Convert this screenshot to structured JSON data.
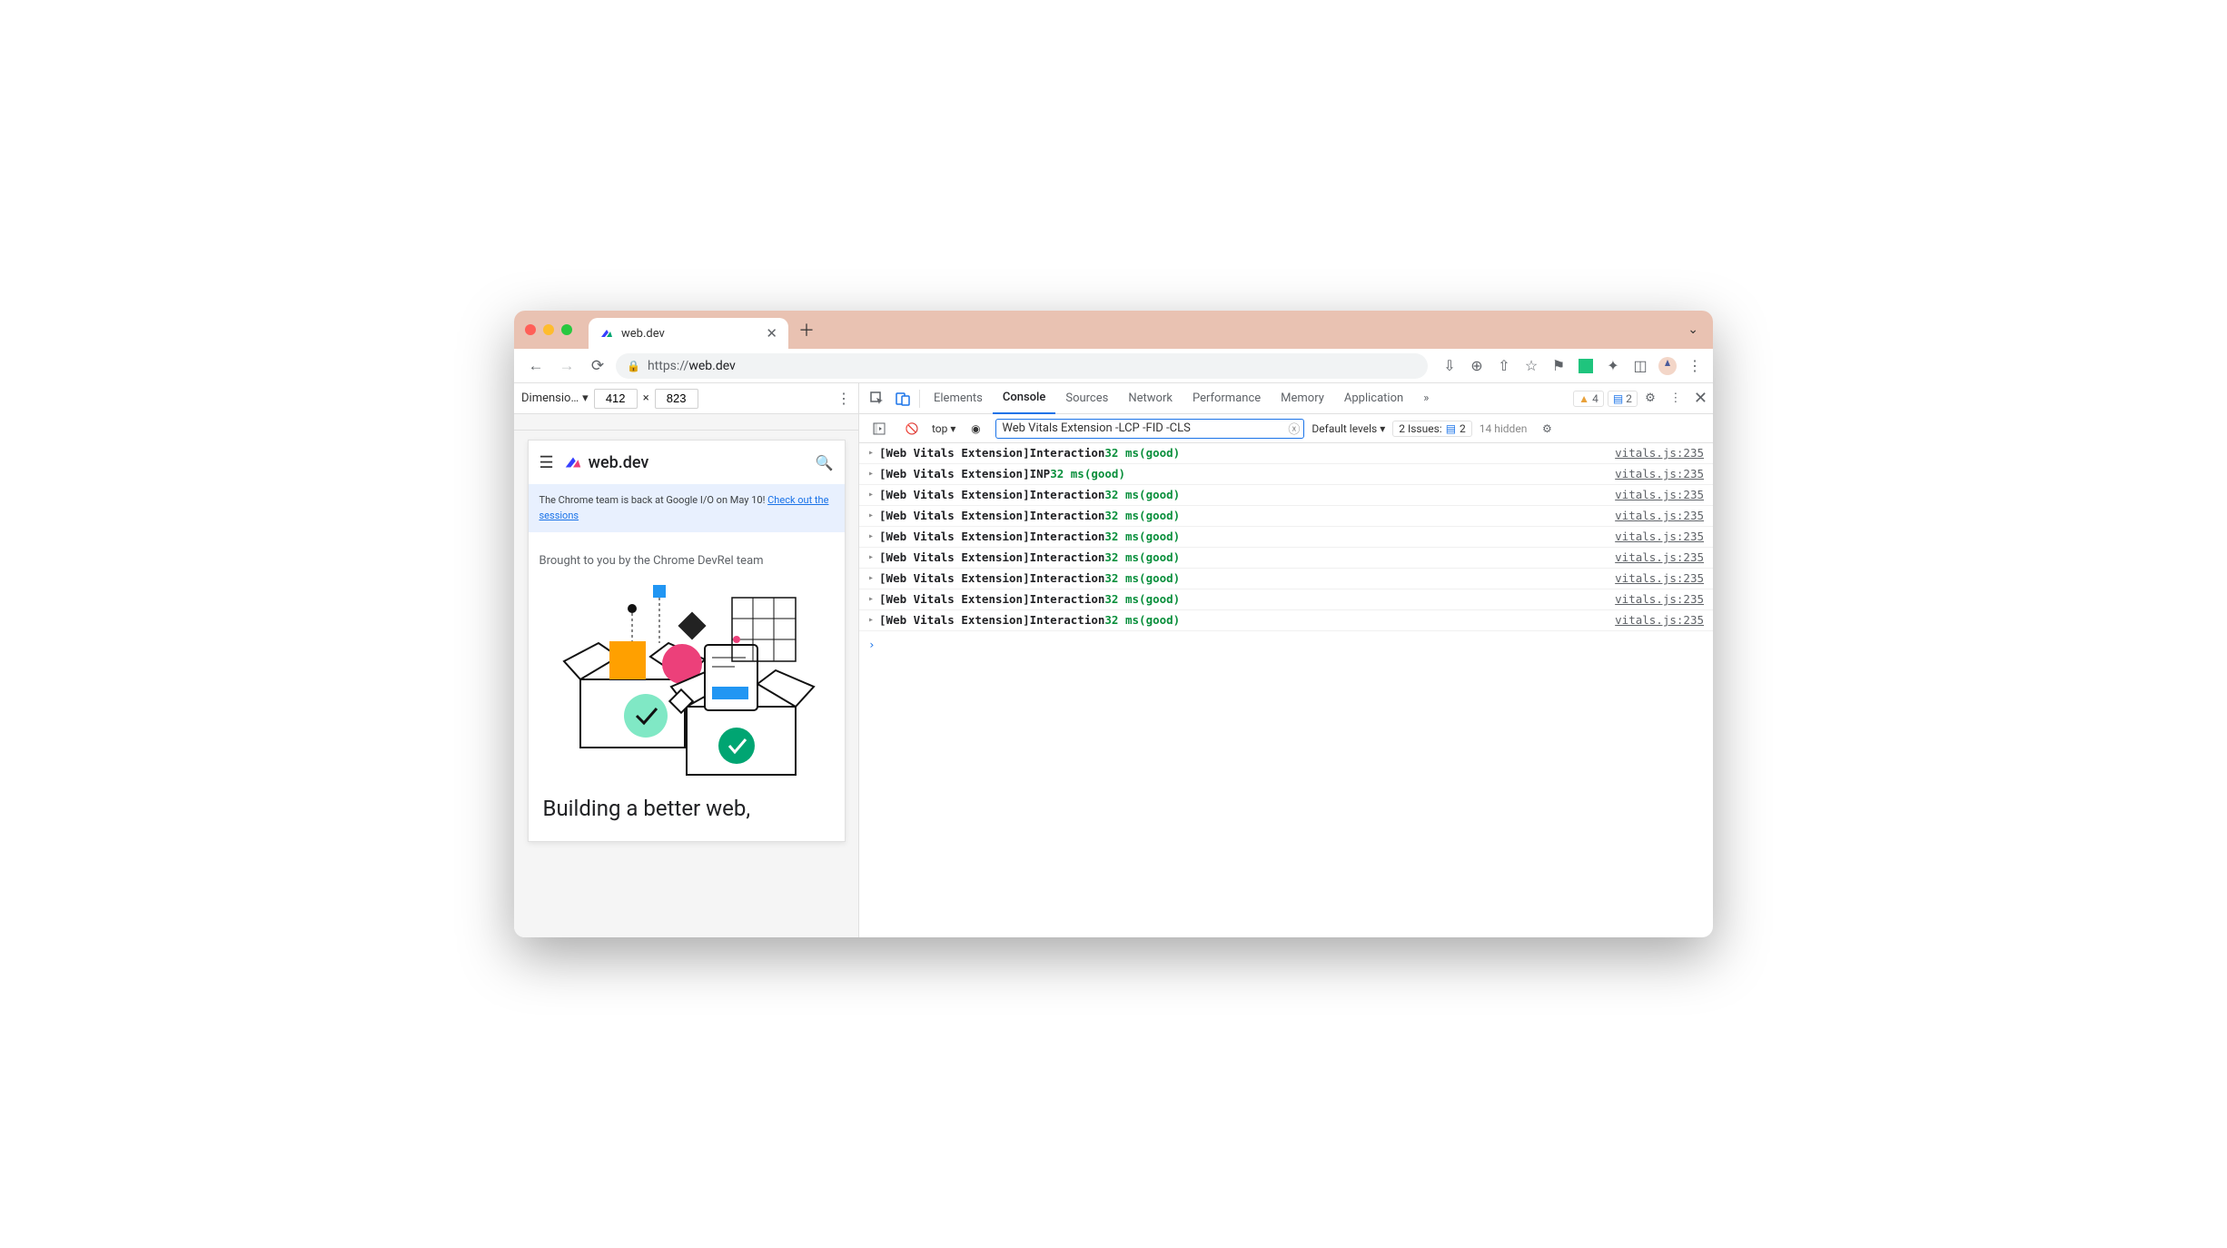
{
  "window": {
    "tab_title": "web.dev",
    "url_scheme": "https://",
    "url_host": "web.dev",
    "traffic_light_colors": {
      "red": "#ff5f57",
      "yellow": "#febc2e",
      "green": "#28c840"
    }
  },
  "device_toolbar": {
    "dimensions_label": "Dimensio…",
    "width": "412",
    "times": "×",
    "height": "823"
  },
  "site": {
    "logo_text": "web.dev",
    "banner_text": "The Chrome team is back at Google I/O on May 10! ",
    "banner_link": "Check out the sessions",
    "brought": "Brought to you by the Chrome DevRel team",
    "headline": "Building a better web,",
    "illustration_colors": {
      "square_blue": "#2196f3",
      "square_orange": "#ffa000",
      "circle_pink": "#ec407a",
      "check_light": "#80e8c5",
      "check_dark": "#00a572",
      "diamond": "#222"
    }
  },
  "devtools": {
    "tabs": [
      "Elements",
      "Console",
      "Sources",
      "Network",
      "Performance",
      "Memory",
      "Application"
    ],
    "active_tab": "Console",
    "more_tabs": "»",
    "warning_count": "4",
    "message_count": "2",
    "filter_bar": {
      "context": "top",
      "filter_value": "Web Vitals Extension -LCP -FID -CLS",
      "levels": "Default levels",
      "issues_label": "2 Issues:",
      "issues_count": "2",
      "hidden": "14 hidden"
    },
    "logs": [
      {
        "tag": "[Web Vitals Extension]",
        "metric": "Interaction",
        "value": "32 ms",
        "status": "(good)",
        "source": "vitals.js:235"
      },
      {
        "tag": "[Web Vitals Extension]",
        "metric": "INP",
        "value": "32 ms",
        "status": "(good)",
        "source": "vitals.js:235"
      },
      {
        "tag": "[Web Vitals Extension]",
        "metric": "Interaction",
        "value": "32 ms",
        "status": "(good)",
        "source": "vitals.js:235"
      },
      {
        "tag": "[Web Vitals Extension]",
        "metric": "Interaction",
        "value": "32 ms",
        "status": "(good)",
        "source": "vitals.js:235"
      },
      {
        "tag": "[Web Vitals Extension]",
        "metric": "Interaction",
        "value": "32 ms",
        "status": "(good)",
        "source": "vitals.js:235"
      },
      {
        "tag": "[Web Vitals Extension]",
        "metric": "Interaction",
        "value": "32 ms",
        "status": "(good)",
        "source": "vitals.js:235"
      },
      {
        "tag": "[Web Vitals Extension]",
        "metric": "Interaction",
        "value": "32 ms",
        "status": "(good)",
        "source": "vitals.js:235"
      },
      {
        "tag": "[Web Vitals Extension]",
        "metric": "Interaction",
        "value": "32 ms",
        "status": "(good)",
        "source": "vitals.js:235"
      },
      {
        "tag": "[Web Vitals Extension]",
        "metric": "Interaction",
        "value": "32 ms",
        "status": "(good)",
        "source": "vitals.js:235"
      }
    ],
    "log_colors": {
      "tag_color": "#202124",
      "value_color": "#0a8f3c",
      "status_color": "#0a8f3c",
      "source_color": "#5f6368"
    }
  }
}
